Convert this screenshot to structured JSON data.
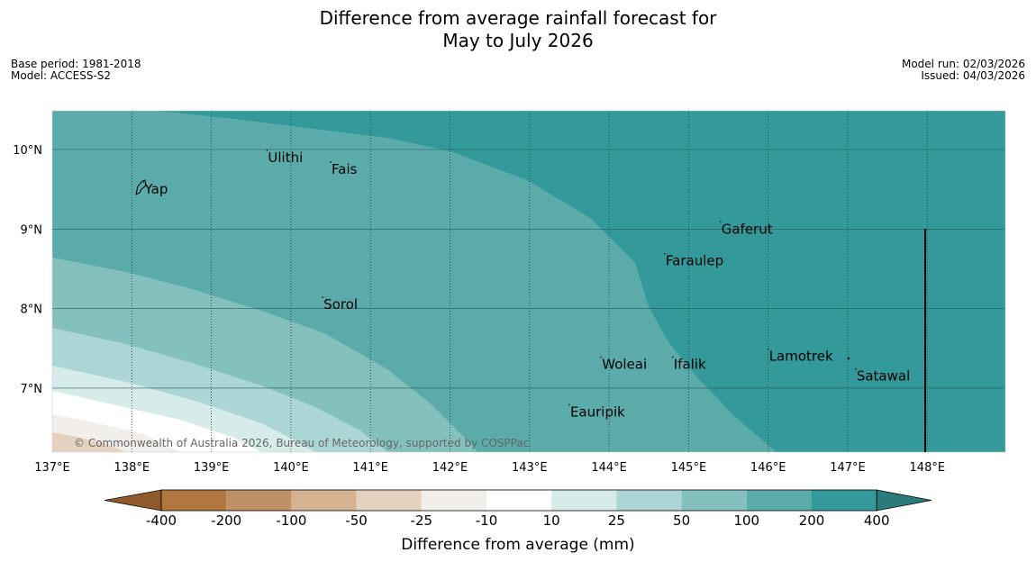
{
  "title": {
    "line1": "Difference from average rainfall forecast for",
    "line2": "May to July 2026"
  },
  "meta_left": {
    "base_period": "Base period: 1981-2018",
    "model": "Model: ACCESS-S2"
  },
  "meta_right": {
    "model_run": "Model run: 02/03/2026",
    "issued": "Issued: 04/03/2026"
  },
  "map": {
    "lon_range": [
      137,
      149
    ],
    "lat_range": [
      6.2,
      10.5
    ],
    "lon_ticks": [
      "137°E",
      "138°E",
      "139°E",
      "140°E",
      "141°E",
      "142°E",
      "143°E",
      "144°E",
      "145°E",
      "146°E",
      "147°E",
      "148°E"
    ],
    "lat_ticks": [
      "10°N",
      "9°N",
      "8°N",
      "7°N"
    ],
    "places": [
      {
        "name": "Ulithi",
        "lon": 139.7,
        "lat": 9.9
      },
      {
        "name": "Fais",
        "lon": 140.5,
        "lat": 9.75
      },
      {
        "name": "Yap",
        "lon": 138.15,
        "lat": 9.5
      },
      {
        "name": "Gaferut",
        "lon": 145.4,
        "lat": 9.0
      },
      {
        "name": "Faraulep",
        "lon": 144.7,
        "lat": 8.6
      },
      {
        "name": "Sorol",
        "lon": 140.4,
        "lat": 8.05
      },
      {
        "name": "Lamotrek",
        "lon": 146.0,
        "lat": 7.4
      },
      {
        "name": "Woleai",
        "lon": 143.9,
        "lat": 7.3
      },
      {
        "name": "Ifalik",
        "lon": 144.8,
        "lat": 7.3
      },
      {
        "name": "Satawal",
        "lon": 147.1,
        "lat": 7.15
      },
      {
        "name": "Eauripik",
        "lon": 143.5,
        "lat": 6.7
      }
    ],
    "copyright": "© Commonwealth of Australia 2026, Bureau of Meteorology, supported by COSPPac"
  },
  "legend": {
    "title": "Difference from average (mm)",
    "ticks": [
      "-400",
      "-200",
      "-100",
      "-50",
      "-25",
      "-10",
      "10",
      "25",
      "50",
      "100",
      "200",
      "400"
    ],
    "colors": [
      "#8f5a2b",
      "#b07840",
      "#c09066",
      "#d4b292",
      "#e4d2c1",
      "#f2efeb",
      "#ffffff",
      "#d6ecea",
      "#acd6d5",
      "#83c0be",
      "#5babab",
      "#33999a",
      "#2a7c7a"
    ]
  }
}
